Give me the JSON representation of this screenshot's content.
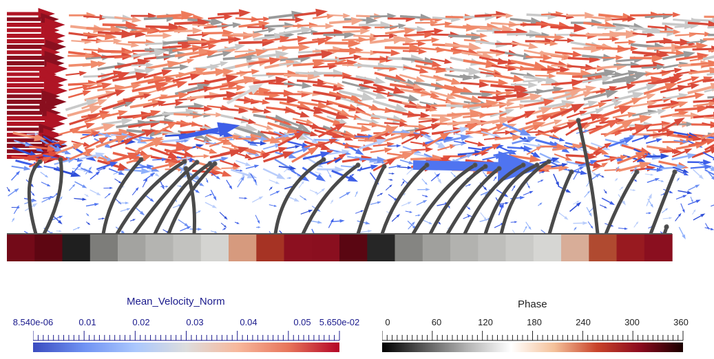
{
  "legends": {
    "velocity": {
      "title": "Mean_Velocity_Norm",
      "text_color": "#1a1a8c",
      "min_label": "8.540e-06",
      "max_label": "5.650e-02",
      "ticks": [
        "0.01",
        "0.02",
        "0.03",
        "0.04",
        "0.05"
      ],
      "colors": [
        "#3b4cc0",
        "#6f92f3",
        "#aac7fd",
        "#dddddd",
        "#f7b89c",
        "#e7755b",
        "#b40426"
      ]
    },
    "phase": {
      "title": "Phase",
      "text_color": "#222222",
      "ticks": [
        "0",
        "60",
        "120",
        "180",
        "240",
        "300",
        "360"
      ],
      "colors": [
        "#000000",
        "#5c5c5c",
        "#b5b5b5",
        "#ffffff",
        "#f4c19a",
        "#c8432a",
        "#8b0a1e",
        "#1a0000"
      ]
    }
  },
  "phase_strip_colors": [
    "#730a18",
    "#5e0612",
    "#1f1f1f",
    "#7d7d7a",
    "#a3a3a0",
    "#b4b4b1",
    "#c2c2bf",
    "#d4d4d1",
    "#d69a7e",
    "#a63324",
    "#8c1020",
    "#8a0f1f",
    "#5a0612",
    "#262626",
    "#858582",
    "#a0a09d",
    "#b2b2af",
    "#bebebb",
    "#cacac7",
    "#d6d6d3",
    "#d8ad98",
    "#b04a30",
    "#981a20",
    "#8a0f1f"
  ],
  "colors": {
    "cilia": "#4a4a4a",
    "background": "#ffffff"
  }
}
